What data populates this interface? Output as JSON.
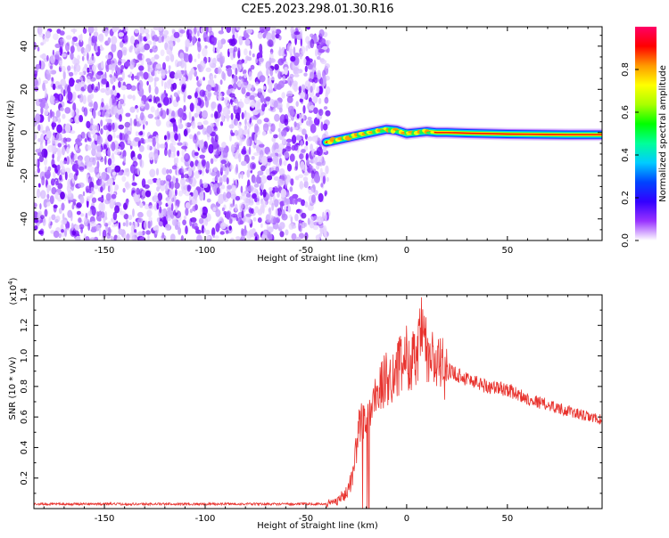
{
  "title": "C2E5.2023.298.01.30.R16",
  "chart_data": [
    {
      "type": "heatmap",
      "xlabel": "Height of straight line (km)",
      "ylabel": "Frequency (Hz)",
      "xlim": [
        -185,
        97
      ],
      "ylim": [
        -50,
        49
      ],
      "xticks": [
        -150,
        -100,
        -50,
        0,
        50
      ],
      "yticks": [
        -40,
        -20,
        0,
        20,
        40
      ],
      "noise_region_x": [
        -185,
        -39
      ],
      "signal_track": {
        "x": [
          -40,
          -35,
          -30,
          -25,
          -20,
          -15,
          -10,
          -5,
          0,
          5,
          10,
          15,
          20,
          30,
          40,
          50,
          60,
          70,
          80,
          90,
          97
        ],
        "y": [
          -4.5,
          -3.5,
          -2.5,
          -1.5,
          -0.5,
          0.5,
          1.5,
          1.0,
          -0.5,
          0.0,
          0.5,
          0.0,
          0.0,
          -0.3,
          -0.5,
          -0.7,
          -0.8,
          -0.9,
          -1.0,
          -1.0,
          -1.0
        ]
      },
      "colorbar": {
        "label": "Normalized spectral amplitude",
        "range": [
          0,
          1
        ],
        "ticks": [
          "0.0",
          "0.2",
          "0.4",
          "0.6",
          "0.8"
        ],
        "colors": [
          "#ffffff",
          "#9933ff",
          "#3300ff",
          "#0044ff",
          "#00ccff",
          "#00ff99",
          "#00ff00",
          "#aaff00",
          "#ffff00",
          "#ff9900",
          "#ff0000",
          "#ff0066"
        ]
      }
    },
    {
      "type": "line",
      "xlabel": "Height of straight line (km)",
      "ylabel": "SNR (10 * v/v)",
      "yscale_label": "(x10",
      "yscale_exp": "4",
      "yscale_close": ")",
      "xlim": [
        -185,
        97
      ],
      "ylim": [
        0,
        1.4
      ],
      "xticks": [
        -150,
        -100,
        -50,
        0,
        50
      ],
      "yticks": [
        "0.2",
        "0.4",
        "0.6",
        "0.8",
        "1.0",
        "1.2",
        "1.4"
      ],
      "color": "#e8332e",
      "envelope_x": [
        -185,
        -40,
        -35,
        -30,
        -27,
        -24,
        -22,
        -20,
        -18,
        -15,
        -10,
        -5,
        0,
        5,
        8,
        10,
        15,
        20,
        25,
        30,
        40,
        50,
        60,
        70,
        80,
        90,
        97
      ],
      "envelope_y": [
        0.03,
        0.03,
        0.05,
        0.1,
        0.2,
        0.5,
        0.6,
        0.55,
        0.65,
        0.75,
        0.85,
        0.9,
        1.0,
        0.95,
        1.2,
        1.0,
        0.95,
        0.9,
        0.88,
        0.85,
        0.8,
        0.78,
        0.72,
        0.68,
        0.64,
        0.6,
        0.58
      ]
    }
  ]
}
